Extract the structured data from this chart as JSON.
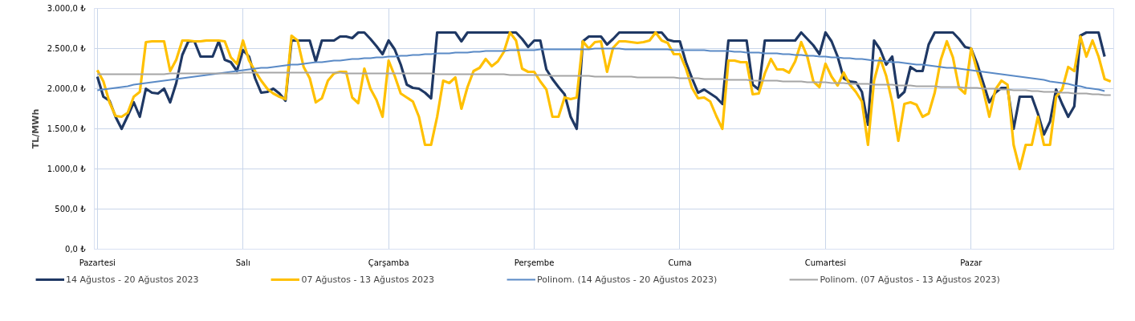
{
  "chart_data": {
    "type": "line",
    "ylabel": "TL/MWh",
    "categories": [
      "Pazartesi",
      null,
      null,
      null,
      null,
      null,
      null,
      null,
      null,
      null,
      null,
      null,
      null,
      null,
      null,
      null,
      null,
      null,
      null,
      null,
      null,
      null,
      null,
      null,
      "Salı",
      null,
      null,
      null,
      null,
      null,
      null,
      null,
      null,
      null,
      null,
      null,
      null,
      null,
      null,
      null,
      null,
      null,
      null,
      null,
      null,
      null,
      null,
      null,
      "Çarşamba",
      null,
      null,
      null,
      null,
      null,
      null,
      null,
      null,
      null,
      null,
      null,
      null,
      null,
      null,
      null,
      null,
      null,
      null,
      null,
      null,
      null,
      null,
      null,
      "Perşembe",
      null,
      null,
      null,
      null,
      null,
      null,
      null,
      null,
      null,
      null,
      null,
      null,
      null,
      null,
      null,
      null,
      null,
      null,
      null,
      null,
      null,
      null,
      null,
      "Cuma",
      null,
      null,
      null,
      null,
      null,
      null,
      null,
      null,
      null,
      null,
      null,
      null,
      null,
      null,
      null,
      null,
      null,
      null,
      null,
      null,
      null,
      null,
      null,
      "Cumartesi",
      null,
      null,
      null,
      null,
      null,
      null,
      null,
      null,
      null,
      null,
      null,
      null,
      null,
      null,
      null,
      null,
      null,
      null,
      null,
      null,
      null,
      null,
      null,
      "Pazar",
      null,
      null,
      null,
      null,
      null,
      null,
      null,
      null,
      null,
      null,
      null,
      null,
      null,
      null,
      null,
      null,
      null,
      null,
      null,
      null,
      null,
      null,
      null
    ],
    "ylim": [
      0,
      3000
    ],
    "yticks": [
      {
        "value": 0,
        "label": "0,0 ₺"
      },
      {
        "value": 500,
        "label": "500,0 ₺"
      },
      {
        "value": 1000,
        "label": "1.000,0 ₺"
      },
      {
        "value": 1500,
        "label": "1.500,0 ₺"
      },
      {
        "value": 2000,
        "label": "2.000,0 ₺"
      },
      {
        "value": 2500,
        "label": "2.500,0 ₺"
      },
      {
        "value": 3000,
        "label": "3.000,0 ₺"
      }
    ],
    "grid": true,
    "legend": "bottom",
    "marker": "none",
    "line_style": "solid",
    "series": [
      {
        "name": "14 Ağustos - 20 Ağustos 2023",
        "color": "#1f3864",
        "values": [
          2150,
          1900,
          1850,
          1650,
          1500,
          1660,
          1830,
          1650,
          2000,
          1950,
          1940,
          2000,
          1830,
          2070,
          2420,
          2590,
          2590,
          2400,
          2400,
          2400,
          2590,
          2360,
          2330,
          2220,
          2480,
          2400,
          2130,
          1950,
          1960,
          2000,
          1940,
          1850,
          2600,
          2600,
          2600,
          2600,
          2340,
          2600,
          2600,
          2600,
          2650,
          2650,
          2630,
          2700,
          2700,
          2620,
          2530,
          2430,
          2600,
          2490,
          2300,
          2050,
          2010,
          2000,
          1950,
          1880,
          2700,
          2700,
          2700,
          2700,
          2590,
          2700,
          2700,
          2700,
          2700,
          2700,
          2700,
          2700,
          2700,
          2700,
          2620,
          2520,
          2600,
          2600,
          2240,
          2120,
          2020,
          1930,
          1650,
          1500,
          2590,
          2650,
          2650,
          2650,
          2550,
          2620,
          2700,
          2700,
          2700,
          2700,
          2700,
          2700,
          2700,
          2700,
          2610,
          2590,
          2590,
          2330,
          2130,
          1950,
          1990,
          1940,
          1890,
          1810,
          2600,
          2600,
          2600,
          2600,
          2050,
          1990,
          2600,
          2600,
          2600,
          2600,
          2600,
          2600,
          2700,
          2620,
          2540,
          2430,
          2700,
          2590,
          2400,
          2130,
          2090,
          2080,
          1960,
          1550,
          2600,
          2490,
          2300,
          2400,
          1890,
          1960,
          2270,
          2220,
          2220,
          2550,
          2700,
          2700,
          2700,
          2700,
          2620,
          2520,
          2500,
          2310,
          2070,
          1830,
          1950,
          2010,
          2010,
          1500,
          1900,
          1900,
          1900,
          1690,
          1430,
          1590,
          1990,
          1810,
          1650,
          1780,
          2660,
          2700,
          2700,
          2700,
          2400,
          null
        ]
      },
      {
        "name": "07 Ağustos - 13 Ağustos 2023",
        "color": "#ffc000",
        "values": [
          2230,
          2090,
          1830,
          1660,
          1650,
          1700,
          1900,
          1960,
          2580,
          2590,
          2590,
          2590,
          2220,
          2360,
          2600,
          2600,
          2590,
          2590,
          2600,
          2600,
          2600,
          2590,
          2390,
          2310,
          2600,
          2350,
          2220,
          2100,
          2000,
          1940,
          1900,
          1870,
          2660,
          2600,
          2270,
          2130,
          1830,
          1880,
          2100,
          2190,
          2210,
          2210,
          1890,
          1820,
          2250,
          2000,
          1860,
          1650,
          2350,
          2160,
          1940,
          1890,
          1840,
          1650,
          1300,
          1300,
          1650,
          2100,
          2070,
          2140,
          1750,
          2020,
          2220,
          2260,
          2370,
          2280,
          2340,
          2460,
          2700,
          2600,
          2250,
          2210,
          2210,
          2090,
          1990,
          1650,
          1650,
          1890,
          1870,
          1890,
          2590,
          2500,
          2580,
          2590,
          2210,
          2510,
          2590,
          2590,
          2580,
          2570,
          2580,
          2600,
          2700,
          2600,
          2570,
          2430,
          2430,
          2250,
          2010,
          1880,
          1890,
          1840,
          1660,
          1500,
          2350,
          2350,
          2330,
          2330,
          1930,
          1940,
          2190,
          2370,
          2240,
          2240,
          2200,
          2340,
          2580,
          2400,
          2090,
          2020,
          2310,
          2150,
          2040,
          2200,
          2050,
          1960,
          1840,
          1300,
          2100,
          2380,
          2160,
          1830,
          1350,
          1810,
          1830,
          1800,
          1650,
          1690,
          1950,
          2360,
          2590,
          2390,
          2010,
          1940,
          2500,
          2220,
          1980,
          1650,
          1990,
          2100,
          2050,
          1300,
          1000,
          1300,
          1300,
          1650,
          1300,
          1300,
          1900,
          1990,
          2270,
          2220,
          2650,
          2400,
          2600,
          2400,
          2120,
          2090
        ]
      },
      {
        "name": "Polinom. (14 Ağustos - 20 Ağustos 2023)",
        "color": "#5a8ac6",
        "values": [
          1980,
          1990,
          2000,
          2010,
          2020,
          2030,
          2050,
          2060,
          2070,
          2080,
          2090,
          2100,
          2110,
          2120,
          2130,
          2140,
          2150,
          2160,
          2170,
          2180,
          2190,
          2200,
          2210,
          2220,
          2230,
          2240,
          2250,
          2260,
          2260,
          2270,
          2280,
          2290,
          2300,
          2300,
          2310,
          2320,
          2330,
          2330,
          2340,
          2350,
          2350,
          2360,
          2370,
          2370,
          2380,
          2380,
          2390,
          2390,
          2400,
          2400,
          2410,
          2410,
          2420,
          2420,
          2430,
          2430,
          2440,
          2440,
          2440,
          2450,
          2450,
          2450,
          2460,
          2460,
          2470,
          2470,
          2470,
          2470,
          2480,
          2480,
          2480,
          2480,
          2480,
          2490,
          2490,
          2490,
          2490,
          2490,
          2490,
          2490,
          2490,
          2490,
          2500,
          2500,
          2500,
          2500,
          2500,
          2490,
          2490,
          2490,
          2490,
          2490,
          2490,
          2490,
          2490,
          2480,
          2480,
          2480,
          2480,
          2480,
          2480,
          2470,
          2470,
          2470,
          2470,
          2460,
          2460,
          2450,
          2450,
          2450,
          2440,
          2440,
          2440,
          2430,
          2430,
          2420,
          2420,
          2410,
          2410,
          2400,
          2400,
          2390,
          2390,
          2380,
          2380,
          2370,
          2370,
          2360,
          2350,
          2350,
          2340,
          2330,
          2330,
          2320,
          2310,
          2300,
          2300,
          2290,
          2280,
          2270,
          2260,
          2260,
          2250,
          2240,
          2230,
          2220,
          2210,
          2200,
          2190,
          2180,
          2170,
          2160,
          2150,
          2140,
          2130,
          2120,
          2110,
          2090,
          2080,
          2070,
          2060,
          2040,
          2030,
          2010,
          2000,
          1990,
          1970,
          null
        ]
      },
      {
        "name": "Polinom. (07 Ağustos - 13 Ağustos 2023)",
        "color": "#a5a5a5",
        "values": [
          2180,
          2180,
          2180,
          2180,
          2180,
          2180,
          2180,
          2180,
          2180,
          2180,
          2180,
          2180,
          2190,
          2190,
          2190,
          2190,
          2190,
          2190,
          2190,
          2190,
          2190,
          2190,
          2190,
          2190,
          2200,
          2200,
          2200,
          2200,
          2200,
          2200,
          2200,
          2200,
          2200,
          2200,
          2200,
          2200,
          2200,
          2200,
          2200,
          2200,
          2200,
          2190,
          2190,
          2190,
          2190,
          2190,
          2190,
          2190,
          2190,
          2190,
          2190,
          2190,
          2190,
          2190,
          2190,
          2190,
          2180,
          2180,
          2180,
          2180,
          2180,
          2180,
          2180,
          2180,
          2180,
          2180,
          2180,
          2180,
          2170,
          2170,
          2170,
          2170,
          2170,
          2170,
          2170,
          2160,
          2160,
          2160,
          2160,
          2160,
          2160,
          2160,
          2150,
          2150,
          2150,
          2150,
          2150,
          2150,
          2150,
          2140,
          2140,
          2140,
          2140,
          2140,
          2140,
          2140,
          2130,
          2130,
          2130,
          2130,
          2120,
          2120,
          2120,
          2120,
          2110,
          2110,
          2110,
          2110,
          2100,
          2100,
          2100,
          2100,
          2100,
          2090,
          2090,
          2090,
          2090,
          2080,
          2080,
          2080,
          2080,
          2070,
          2070,
          2070,
          2060,
          2060,
          2060,
          2060,
          2050,
          2050,
          2050,
          2050,
          2040,
          2040,
          2040,
          2030,
          2030,
          2030,
          2030,
          2020,
          2020,
          2020,
          2020,
          2010,
          2010,
          2010,
          2000,
          2000,
          2000,
          1990,
          1990,
          1980,
          1980,
          1980,
          1970,
          1970,
          1960,
          1960,
          1960,
          1950,
          1950,
          1940,
          1940,
          1940,
          1930,
          1930,
          1920,
          1920
        ]
      }
    ]
  }
}
